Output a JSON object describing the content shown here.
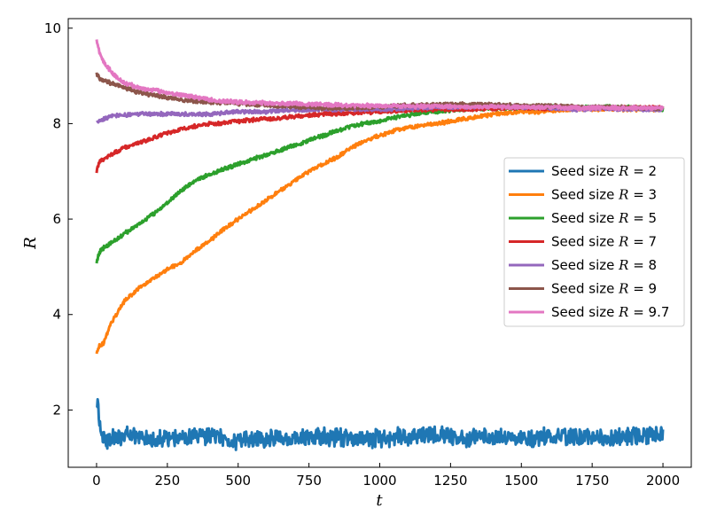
{
  "chart_data": {
    "type": "line",
    "title": "",
    "xlabel": "t",
    "ylabel": "R",
    "xlim": [
      -100,
      2100
    ],
    "ylim": [
      0.8,
      10.2
    ],
    "xticks": [
      0,
      250,
      500,
      750,
      1000,
      1250,
      1500,
      1750,
      2000
    ],
    "yticks": [
      2,
      4,
      6,
      8,
      10
    ],
    "grid": false,
    "legend_position": "center-right",
    "series": [
      {
        "name": "Seed size R = 2",
        "label_prefix": "Seed size",
        "label_var": "R",
        "label_value": "= 2",
        "color": "#1f77b4",
        "x": [
          0,
          5,
          10,
          20,
          30,
          50,
          100,
          200,
          300,
          400,
          500,
          600,
          700,
          800,
          900,
          1000,
          1100,
          1200,
          1300,
          1400,
          1500,
          1600,
          1700,
          1800,
          1900,
          2000
        ],
        "y": [
          2.1,
          2.3,
          1.7,
          1.5,
          1.35,
          1.4,
          1.45,
          1.4,
          1.4,
          1.45,
          1.35,
          1.4,
          1.4,
          1.45,
          1.4,
          1.4,
          1.45,
          1.5,
          1.4,
          1.45,
          1.4,
          1.45,
          1.45,
          1.4,
          1.45,
          1.5
        ]
      },
      {
        "name": "Seed size R = 3",
        "label_prefix": "Seed size",
        "label_var": "R",
        "label_value": "= 3",
        "color": "#ff7f0e",
        "x": [
          0,
          10,
          25,
          50,
          100,
          150,
          200,
          250,
          300,
          350,
          400,
          450,
          500,
          550,
          600,
          650,
          700,
          750,
          800,
          850,
          900,
          950,
          1000,
          1050,
          1100,
          1150,
          1200,
          1250,
          1300,
          1350,
          1400,
          1450,
          1500,
          1550,
          1600,
          1650,
          1700,
          1750,
          1800,
          1850,
          1900,
          1950,
          2000
        ],
        "y": [
          3.2,
          3.35,
          3.4,
          3.8,
          4.3,
          4.55,
          4.75,
          4.95,
          5.1,
          5.35,
          5.55,
          5.8,
          6.0,
          6.2,
          6.4,
          6.6,
          6.8,
          7.0,
          7.15,
          7.3,
          7.5,
          7.65,
          7.75,
          7.85,
          7.92,
          7.97,
          8.0,
          8.05,
          8.1,
          8.15,
          8.2,
          8.22,
          8.25,
          8.25,
          8.27,
          8.28,
          8.3,
          8.3,
          8.3,
          8.3,
          8.3,
          8.3,
          8.3
        ]
      },
      {
        "name": "Seed size R = 5",
        "label_prefix": "Seed size",
        "label_var": "R",
        "label_value": "= 5",
        "color": "#2ca02c",
        "x": [
          0,
          10,
          25,
          50,
          100,
          150,
          200,
          250,
          300,
          350,
          400,
          450,
          500,
          550,
          600,
          650,
          700,
          750,
          800,
          850,
          900,
          950,
          1000,
          1050,
          1100,
          1150,
          1200,
          1250,
          1300,
          1400,
          1500,
          1600,
          1700,
          1800,
          1900,
          2000
        ],
        "y": [
          5.1,
          5.3,
          5.4,
          5.5,
          5.7,
          5.9,
          6.1,
          6.35,
          6.6,
          6.8,
          6.95,
          7.05,
          7.15,
          7.25,
          7.35,
          7.45,
          7.55,
          7.65,
          7.75,
          7.85,
          7.95,
          8.0,
          8.05,
          8.12,
          8.18,
          8.22,
          8.25,
          8.28,
          8.3,
          8.32,
          8.33,
          8.35,
          8.33,
          8.35,
          8.33,
          8.3
        ]
      },
      {
        "name": "Seed size R = 7",
        "label_prefix": "Seed size",
        "label_var": "R",
        "label_value": "= 7",
        "color": "#d62728",
        "x": [
          0,
          10,
          25,
          50,
          100,
          150,
          200,
          250,
          300,
          350,
          400,
          450,
          500,
          550,
          600,
          650,
          700,
          750,
          800,
          900,
          1000,
          1100,
          1200,
          1300,
          1400,
          1500,
          1600,
          1700,
          1800,
          1900,
          2000
        ],
        "y": [
          7.0,
          7.2,
          7.25,
          7.35,
          7.5,
          7.6,
          7.7,
          7.8,
          7.88,
          7.95,
          8.0,
          8.02,
          8.05,
          8.08,
          8.1,
          8.12,
          8.15,
          8.18,
          8.2,
          8.22,
          8.25,
          8.28,
          8.3,
          8.3,
          8.32,
          8.33,
          8.32,
          8.33,
          8.32,
          8.33,
          8.33
        ]
      },
      {
        "name": "Seed size R = 8",
        "label_prefix": "Seed size",
        "label_var": "R",
        "label_value": "= 8",
        "color": "#9467bd",
        "x": [
          0,
          10,
          25,
          50,
          100,
          150,
          200,
          250,
          300,
          400,
          500,
          600,
          700,
          800,
          900,
          1000,
          1100,
          1200,
          1300,
          1400,
          1500,
          1600,
          1700,
          1800,
          1900,
          2000
        ],
        "y": [
          8.0,
          8.05,
          8.1,
          8.15,
          8.18,
          8.2,
          8.2,
          8.2,
          8.2,
          8.2,
          8.25,
          8.25,
          8.28,
          8.3,
          8.3,
          8.3,
          8.32,
          8.35,
          8.35,
          8.38,
          8.35,
          8.33,
          8.3,
          8.32,
          8.3,
          8.3
        ]
      },
      {
        "name": "Seed size R = 9",
        "label_prefix": "Seed size",
        "label_var": "R",
        "label_value": "= 9",
        "color": "#8c564b",
        "x": [
          0,
          10,
          25,
          50,
          100,
          150,
          200,
          250,
          300,
          350,
          400,
          500,
          600,
          700,
          800,
          900,
          1000,
          1100,
          1200,
          1300,
          1400,
          1500,
          1600,
          1700,
          1800,
          1900,
          2000
        ],
        "y": [
          9.05,
          8.95,
          8.9,
          8.85,
          8.75,
          8.65,
          8.6,
          8.55,
          8.5,
          8.47,
          8.45,
          8.42,
          8.38,
          8.35,
          8.33,
          8.33,
          8.35,
          8.38,
          8.4,
          8.4,
          8.4,
          8.38,
          8.37,
          8.35,
          8.35,
          8.33,
          8.33
        ]
      },
      {
        "name": "Seed size R = 9.7",
        "label_prefix": "Seed size",
        "label_var": "R",
        "label_value": "= 9.7",
        "color": "#e377c2",
        "x": [
          0,
          5,
          10,
          25,
          50,
          75,
          100,
          150,
          200,
          250,
          300,
          350,
          400,
          500,
          600,
          700,
          800,
          900,
          1000,
          1100,
          1200,
          1300,
          1400,
          1500,
          1600,
          1700,
          1800,
          1900,
          2000
        ],
        "y": [
          9.75,
          9.65,
          9.5,
          9.3,
          9.1,
          8.95,
          8.85,
          8.75,
          8.7,
          8.65,
          8.6,
          8.55,
          8.5,
          8.45,
          8.43,
          8.42,
          8.4,
          8.38,
          8.37,
          8.36,
          8.36,
          8.35,
          8.35,
          8.34,
          8.34,
          8.33,
          8.33,
          8.33,
          8.33
        ]
      }
    ]
  }
}
